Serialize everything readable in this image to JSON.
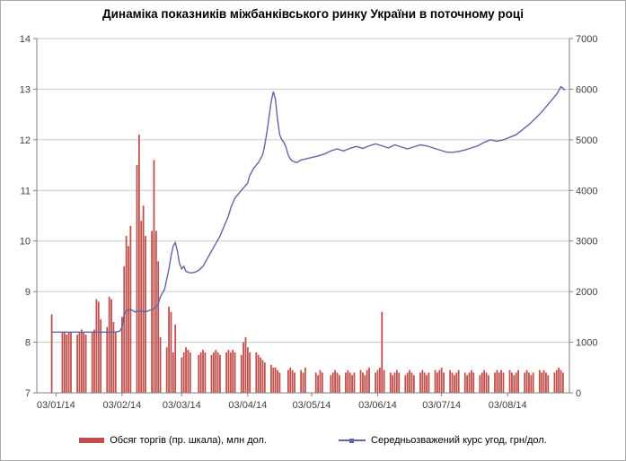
{
  "chart_data": {
    "type": "combo",
    "title": "Динаміка показників міжбанківського ринку України в поточному році",
    "x_axis": {
      "domain_days": [
        -6,
        244
      ],
      "tick_days": [
        3,
        34,
        62,
        93,
        123,
        154,
        184,
        215
      ],
      "tick_labels": [
        "03/01/14",
        "03/02/14",
        "03/03/14",
        "03/04/14",
        "03/05/14",
        "03/06/14",
        "03/07/14",
        "03/08/14"
      ]
    },
    "y_left": {
      "range": [
        7,
        14
      ],
      "ticks": [
        7,
        8,
        9,
        10,
        11,
        12,
        13,
        14
      ]
    },
    "y_right": {
      "range": [
        0,
        7000
      ],
      "ticks": [
        0,
        1000,
        2000,
        3000,
        4000,
        5000,
        6000,
        7000
      ]
    },
    "grid_color": "#c9c9c9",
    "axis_color": "#808080",
    "series": [
      {
        "name": "Обсяг торгів (пр. шкала), млн дол.",
        "type": "bar",
        "axis": "right",
        "color": "#c0504d",
        "points": [
          [
            1,
            1550
          ],
          [
            6,
            1200
          ],
          [
            7,
            1200
          ],
          [
            8,
            1150
          ],
          [
            9,
            1200
          ],
          [
            10,
            1200
          ],
          [
            13,
            1150
          ],
          [
            14,
            1200
          ],
          [
            15,
            1250
          ],
          [
            16,
            1200
          ],
          [
            17,
            1150
          ],
          [
            20,
            1200
          ],
          [
            21,
            1250
          ],
          [
            22,
            1850
          ],
          [
            23,
            1800
          ],
          [
            24,
            1450
          ],
          [
            27,
            1300
          ],
          [
            28,
            1900
          ],
          [
            29,
            1850
          ],
          [
            30,
            1400
          ],
          [
            31,
            1200
          ],
          [
            34,
            1500
          ],
          [
            35,
            2500
          ],
          [
            36,
            3100
          ],
          [
            37,
            2900
          ],
          [
            38,
            3300
          ],
          [
            41,
            4500
          ],
          [
            42,
            5100
          ],
          [
            43,
            3400
          ],
          [
            44,
            3700
          ],
          [
            45,
            3100
          ],
          [
            48,
            3200
          ],
          [
            49,
            4600
          ],
          [
            50,
            3200
          ],
          [
            51,
            2600
          ],
          [
            52,
            1100
          ],
          [
            55,
            900
          ],
          [
            56,
            1700
          ],
          [
            57,
            1600
          ],
          [
            58,
            800
          ],
          [
            59,
            1350
          ],
          [
            62,
            700
          ],
          [
            63,
            800
          ],
          [
            64,
            900
          ],
          [
            65,
            850
          ],
          [
            66,
            800
          ],
          [
            70,
            750
          ],
          [
            71,
            800
          ],
          [
            72,
            850
          ],
          [
            73,
            800
          ],
          [
            76,
            750
          ],
          [
            77,
            800
          ],
          [
            78,
            850
          ],
          [
            79,
            800
          ],
          [
            80,
            750
          ],
          [
            83,
            800
          ],
          [
            84,
            850
          ],
          [
            85,
            800
          ],
          [
            86,
            850
          ],
          [
            87,
            800
          ],
          [
            90,
            750
          ],
          [
            91,
            1000
          ],
          [
            92,
            1100
          ],
          [
            93,
            900
          ],
          [
            94,
            800
          ],
          [
            97,
            800
          ],
          [
            98,
            750
          ],
          [
            99,
            700
          ],
          [
            100,
            650
          ],
          [
            101,
            600
          ],
          [
            104,
            550
          ],
          [
            105,
            500
          ],
          [
            106,
            500
          ],
          [
            107,
            450
          ],
          [
            108,
            400
          ],
          [
            112,
            450
          ],
          [
            113,
            500
          ],
          [
            114,
            450
          ],
          [
            115,
            400
          ],
          [
            118,
            450
          ],
          [
            119,
            400
          ],
          [
            120,
            500
          ],
          [
            125,
            400
          ],
          [
            126,
            350
          ],
          [
            127,
            450
          ],
          [
            128,
            400
          ],
          [
            132,
            350
          ],
          [
            133,
            400
          ],
          [
            134,
            450
          ],
          [
            135,
            400
          ],
          [
            136,
            350
          ],
          [
            139,
            400
          ],
          [
            140,
            450
          ],
          [
            141,
            400
          ],
          [
            142,
            350
          ],
          [
            143,
            400
          ],
          [
            146,
            450
          ],
          [
            147,
            400
          ],
          [
            148,
            350
          ],
          [
            149,
            450
          ],
          [
            150,
            500
          ],
          [
            153,
            400
          ],
          [
            154,
            450
          ],
          [
            155,
            500
          ],
          [
            156,
            1600
          ],
          [
            157,
            450
          ],
          [
            160,
            400
          ],
          [
            161,
            350
          ],
          [
            162,
            400
          ],
          [
            163,
            450
          ],
          [
            164,
            400
          ],
          [
            167,
            350
          ],
          [
            168,
            400
          ],
          [
            169,
            450
          ],
          [
            170,
            400
          ],
          [
            171,
            350
          ],
          [
            174,
            400
          ],
          [
            175,
            450
          ],
          [
            176,
            400
          ],
          [
            177,
            350
          ],
          [
            178,
            400
          ],
          [
            181,
            450
          ],
          [
            182,
            400
          ],
          [
            183,
            450
          ],
          [
            184,
            500
          ],
          [
            185,
            400
          ],
          [
            188,
            450
          ],
          [
            189,
            400
          ],
          [
            190,
            350
          ],
          [
            191,
            400
          ],
          [
            192,
            450
          ],
          [
            195,
            400
          ],
          [
            196,
            350
          ],
          [
            197,
            400
          ],
          [
            198,
            450
          ],
          [
            199,
            400
          ],
          [
            202,
            350
          ],
          [
            203,
            400
          ],
          [
            204,
            450
          ],
          [
            205,
            400
          ],
          [
            206,
            350
          ],
          [
            209,
            400
          ],
          [
            210,
            450
          ],
          [
            211,
            400
          ],
          [
            212,
            450
          ],
          [
            213,
            400
          ],
          [
            216,
            450
          ],
          [
            217,
            400
          ],
          [
            218,
            350
          ],
          [
            219,
            400
          ],
          [
            220,
            450
          ],
          [
            223,
            400
          ],
          [
            224,
            450
          ],
          [
            225,
            400
          ],
          [
            226,
            350
          ],
          [
            227,
            400
          ],
          [
            230,
            450
          ],
          [
            231,
            400
          ],
          [
            232,
            450
          ],
          [
            233,
            400
          ],
          [
            234,
            350
          ],
          [
            237,
            400
          ],
          [
            238,
            450
          ],
          [
            239,
            500
          ],
          [
            240,
            450
          ],
          [
            241,
            400
          ]
        ]
      },
      {
        "name": "Середньозважений курс угод, грн/дол.",
        "type": "line",
        "axis": "left",
        "color": "#6266a3",
        "points": [
          [
            1,
            8.2
          ],
          [
            31,
            8.2
          ],
          [
            33,
            8.22
          ],
          [
            34,
            8.3
          ],
          [
            35,
            8.55
          ],
          [
            36,
            8.62
          ],
          [
            38,
            8.65
          ],
          [
            40,
            8.6
          ],
          [
            43,
            8.62
          ],
          [
            45,
            8.6
          ],
          [
            47,
            8.63
          ],
          [
            49,
            8.66
          ],
          [
            51,
            8.75
          ],
          [
            52,
            8.9
          ],
          [
            54,
            9.05
          ],
          [
            55,
            9.25
          ],
          [
            56,
            9.45
          ],
          [
            57,
            9.7
          ],
          [
            58,
            9.9
          ],
          [
            59,
            9.97
          ],
          [
            60,
            9.8
          ],
          [
            61,
            9.55
          ],
          [
            62,
            9.45
          ],
          [
            63,
            9.5
          ],
          [
            64,
            9.4
          ],
          [
            66,
            9.37
          ],
          [
            68,
            9.38
          ],
          [
            70,
            9.42
          ],
          [
            72,
            9.5
          ],
          [
            74,
            9.65
          ],
          [
            76,
            9.8
          ],
          [
            78,
            9.95
          ],
          [
            80,
            10.1
          ],
          [
            82,
            10.3
          ],
          [
            84,
            10.5
          ],
          [
            85,
            10.65
          ],
          [
            86,
            10.75
          ],
          [
            87,
            10.85
          ],
          [
            88,
            10.9
          ],
          [
            89,
            10.95
          ],
          [
            90,
            11.0
          ],
          [
            91,
            11.05
          ],
          [
            92,
            11.1
          ],
          [
            93,
            11.15
          ],
          [
            94,
            11.3
          ],
          [
            96,
            11.45
          ],
          [
            98,
            11.55
          ],
          [
            100,
            11.7
          ],
          [
            101,
            11.9
          ],
          [
            102,
            12.15
          ],
          [
            103,
            12.45
          ],
          [
            104,
            12.75
          ],
          [
            105,
            12.95
          ],
          [
            106,
            12.8
          ],
          [
            107,
            12.4
          ],
          [
            108,
            12.1
          ],
          [
            109,
            12.0
          ],
          [
            110,
            11.95
          ],
          [
            111,
            11.85
          ],
          [
            112,
            11.7
          ],
          [
            113,
            11.62
          ],
          [
            114,
            11.58
          ],
          [
            116,
            11.55
          ],
          [
            118,
            11.6
          ],
          [
            120,
            11.62
          ],
          [
            123,
            11.65
          ],
          [
            126,
            11.68
          ],
          [
            129,
            11.72
          ],
          [
            132,
            11.78
          ],
          [
            135,
            11.82
          ],
          [
            138,
            11.78
          ],
          [
            141,
            11.83
          ],
          [
            144,
            11.87
          ],
          [
            147,
            11.83
          ],
          [
            150,
            11.88
          ],
          [
            153,
            11.92
          ],
          [
            156,
            11.88
          ],
          [
            159,
            11.84
          ],
          [
            162,
            11.9
          ],
          [
            165,
            11.86
          ],
          [
            168,
            11.82
          ],
          [
            171,
            11.86
          ],
          [
            174,
            11.9
          ],
          [
            177,
            11.88
          ],
          [
            180,
            11.84
          ],
          [
            183,
            11.8
          ],
          [
            186,
            11.76
          ],
          [
            189,
            11.75
          ],
          [
            192,
            11.77
          ],
          [
            195,
            11.8
          ],
          [
            198,
            11.84
          ],
          [
            201,
            11.88
          ],
          [
            204,
            11.95
          ],
          [
            207,
            12.0
          ],
          [
            210,
            11.97
          ],
          [
            213,
            12.0
          ],
          [
            216,
            12.05
          ],
          [
            219,
            12.1
          ],
          [
            222,
            12.2
          ],
          [
            225,
            12.3
          ],
          [
            228,
            12.42
          ],
          [
            231,
            12.55
          ],
          [
            234,
            12.7
          ],
          [
            236,
            12.8
          ],
          [
            238,
            12.9
          ],
          [
            240,
            13.05
          ],
          [
            242,
            12.98
          ]
        ]
      }
    ]
  }
}
